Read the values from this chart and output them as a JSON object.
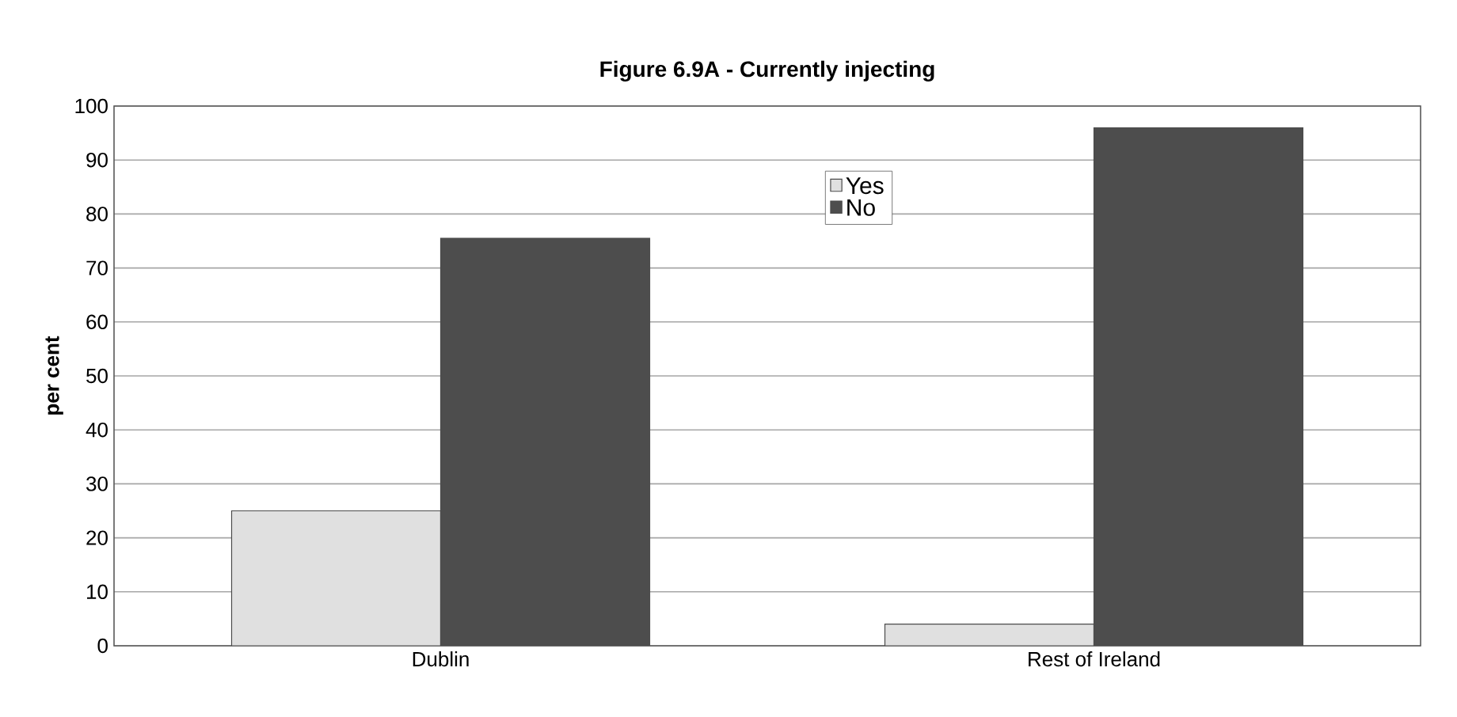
{
  "chart_data": {
    "type": "bar",
    "title": "Figure 6.9A - Currently injecting",
    "ylabel": "per cent",
    "categories": [
      "Dublin",
      "Rest of Ireland"
    ],
    "series": [
      {
        "name": "Yes",
        "color": "#e0e0e0",
        "values": [
          25,
          4
        ]
      },
      {
        "name": "No",
        "color": "#4d4d4d",
        "values": [
          75.5,
          96
        ]
      }
    ],
    "ylim": [
      0,
      100
    ],
    "yticks": [
      0,
      10,
      20,
      30,
      40,
      50,
      60,
      70,
      80,
      90,
      100
    ],
    "grid": "y",
    "legend": "top"
  }
}
